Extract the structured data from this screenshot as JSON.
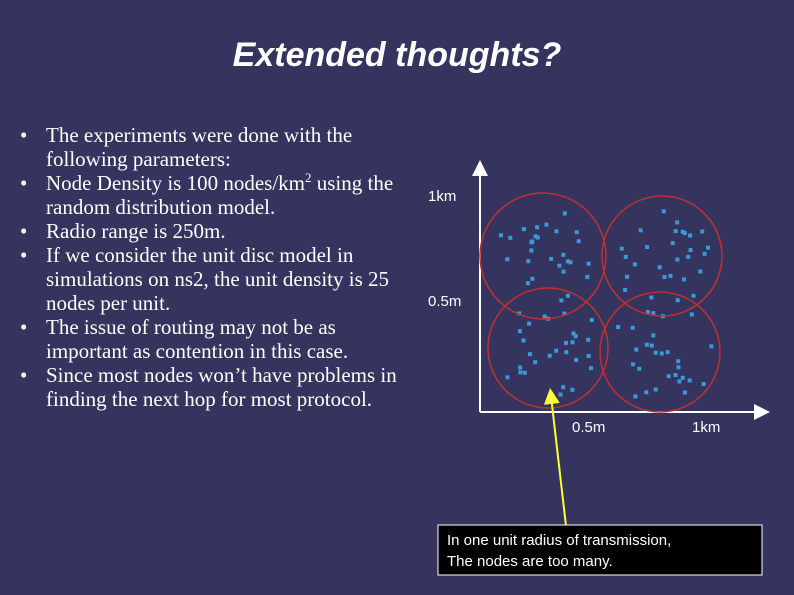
{
  "title": "Extended thoughts?",
  "bullets": [
    {
      "text": "The experiments were done with the following parameters:"
    },
    {
      "text": "Node Density is 100 nodes/km",
      "sup": "2",
      "rest": " using the random distribution model."
    },
    {
      "text": "Radio range is 250m."
    },
    {
      "text": "If we consider the unit disc model in simulations on ns2, the unit density is 25 nodes per unit."
    },
    {
      "text": "The issue of routing may not be as important as contention in this case."
    },
    {
      "text": "Since most nodes won’t have problems in finding the next hop for most protocol."
    }
  ],
  "diagram": {
    "y_labels": [
      "1km",
      "0.5m"
    ],
    "x_labels": [
      "0.5m",
      "1km"
    ],
    "callout": [
      "In one unit radius of transmission,",
      "The nodes are too many."
    ]
  }
}
